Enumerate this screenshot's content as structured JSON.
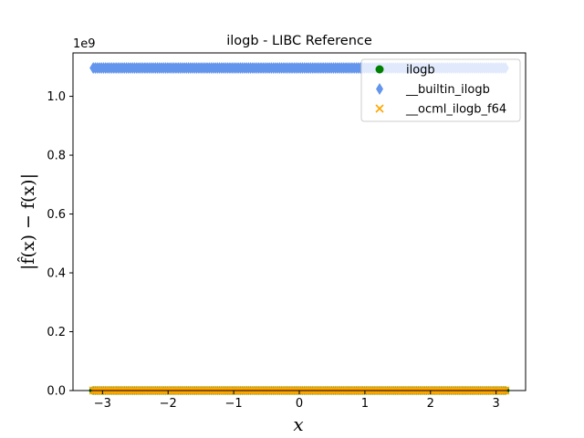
{
  "chart_data": {
    "type": "scatter",
    "title": "ilogb - LIBC Reference",
    "xlabel": "x",
    "ylabel": "|f̂(x) − f(x)|",
    "y_exponent_label": "1e9",
    "xlim": [
      -3.45,
      3.45
    ],
    "ylim": [
      0,
      1.1475
    ],
    "x_ticks": [
      -3,
      -2,
      -1,
      0,
      1,
      2,
      3
    ],
    "x_tick_labels": [
      "−3",
      "−2",
      "−1",
      "0",
      "1",
      "2",
      "3"
    ],
    "y_ticks": [
      0.0,
      0.2,
      0.4,
      0.6,
      0.8,
      1.0
    ],
    "y_tick_labels": [
      "0.0",
      "0.2",
      "0.4",
      "0.6",
      "0.8",
      "1.0"
    ],
    "grid": false,
    "legend_position": "upper-right",
    "x_range": [
      -3.14159,
      3.14159
    ],
    "series": [
      {
        "name": "ilogb",
        "marker": "circle",
        "color": "#008000",
        "y": 0
      },
      {
        "name": "__builtin_ilogb",
        "marker": "thin-diamond",
        "color": "#6495ed",
        "y": 1.0963
      },
      {
        "name": "__ocml_ilogb_f64",
        "marker": "x",
        "color": "#ffa500",
        "y": 0
      }
    ]
  }
}
